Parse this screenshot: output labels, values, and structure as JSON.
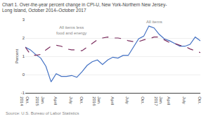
{
  "chart_data": {
    "type": "line",
    "title": "Chart 1. Over-the-year percent change in CPI-U, New York-Northern New Jersey-\nLong Island, October 2014–October 2017",
    "ylabel": "Percent",
    "source": "Source: U.S. Bureau of Labor Statistics",
    "categories": [
      "Oct.\n2014",
      null,
      null,
      "Jan.\n2015",
      null,
      null,
      "April",
      null,
      null,
      "July",
      null,
      "Oct.",
      null,
      null,
      "Jan.\n2016",
      null,
      null,
      "April",
      null,
      null,
      "July",
      null,
      null,
      "Oct.",
      null,
      null,
      "Jan.\n2017",
      null,
      "April",
      null,
      null,
      "July",
      null,
      null,
      "Oct."
    ],
    "series": [
      {
        "name": "All items",
        "color": "#4472c4",
        "line_style": "solid",
        "values": [
          1.5,
          1.35,
          1.1,
          0.9,
          0.45,
          -0.4,
          0.05,
          -0.1,
          -0.1,
          -0.05,
          -0.15,
          0.15,
          0.5,
          0.7,
          0.8,
          0.55,
          0.8,
          0.95,
          0.9,
          1.05,
          1.05,
          1.5,
          1.95,
          2.1,
          2.65,
          2.55,
          2.2,
          1.95,
          1.85,
          1.7,
          1.55,
          1.55,
          1.65,
          2.05,
          1.85
        ]
      },
      {
        "name": "All items less food and energy",
        "color": "#7b2d5e",
        "line_style": "dashed",
        "values": [
          1.5,
          1.1,
          1.05,
          1.1,
          1.35,
          1.55,
          1.6,
          1.55,
          1.4,
          1.35,
          1.35,
          1.3,
          1.5,
          1.7,
          1.9,
          2.0,
          2.05,
          2.0,
          2.0,
          1.95,
          1.85,
          1.8,
          1.8,
          1.9,
          1.95,
          2.05,
          2.05,
          1.9,
          1.75,
          1.7,
          1.6,
          1.55,
          1.4,
          1.3,
          1.2
        ]
      }
    ],
    "annotations": [
      {
        "text": "All items less\nfood and energy",
        "x": 9,
        "y": 2.08
      },
      {
        "text": "All items",
        "x": 25,
        "y": 2.69
      }
    ],
    "ylim": [
      -1,
      3
    ],
    "yticks": [
      -1,
      0,
      1,
      2,
      3
    ],
    "grid": true
  }
}
